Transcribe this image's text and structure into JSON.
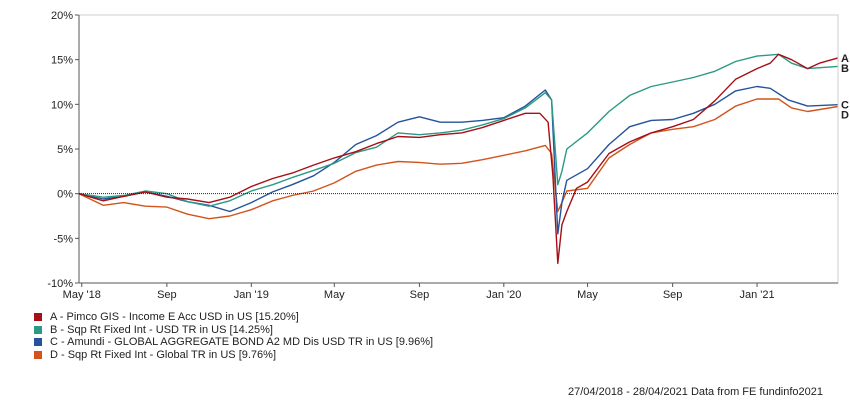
{
  "chart_data": {
    "type": "line",
    "y_tick_labels": [
      "20%",
      "15%",
      "10%",
      "5%",
      "0%",
      "-5%",
      "-10%"
    ],
    "y_ticks": [
      20,
      15,
      10,
      5,
      0,
      -5,
      -10
    ],
    "ylim": [
      -10,
      20
    ],
    "xlim": [
      "2018-04-27",
      "2021-04-28"
    ],
    "x_ticks": [
      {
        "label": "May '18",
        "date": "2018-05-01"
      },
      {
        "label": "Sep",
        "date": "2018-09-01"
      },
      {
        "label": "Jan '19",
        "date": "2019-01-01"
      },
      {
        "label": "May",
        "date": "2019-05-01"
      },
      {
        "label": "Sep",
        "date": "2019-09-01"
      },
      {
        "label": "Jan '20",
        "date": "2020-01-01"
      },
      {
        "label": "May",
        "date": "2020-05-01"
      },
      {
        "label": "Sep",
        "date": "2020-09-01"
      },
      {
        "label": "Jan '21",
        "date": "2021-01-01"
      }
    ],
    "grid": false,
    "zero_line": true,
    "legend_position": "bottom-left",
    "series": [
      {
        "name": "A - Pimco GIS - Income E Acc USD in US [15.20%]",
        "end_label": "A",
        "color": "#a50f15",
        "points": [
          [
            "2018-04-27",
            0
          ],
          [
            "2018-06-01",
            -0.8
          ],
          [
            "2018-07-01",
            -0.3
          ],
          [
            "2018-08-01",
            0.2
          ],
          [
            "2018-09-01",
            -0.4
          ],
          [
            "2018-10-01",
            -0.6
          ],
          [
            "2018-11-01",
            -1.0
          ],
          [
            "2018-12-01",
            -0.4
          ],
          [
            "2019-01-01",
            0.8
          ],
          [
            "2019-02-01",
            1.7
          ],
          [
            "2019-03-01",
            2.3
          ],
          [
            "2019-04-01",
            3.2
          ],
          [
            "2019-05-01",
            4.0
          ],
          [
            "2019-06-01",
            4.7
          ],
          [
            "2019-07-01",
            5.6
          ],
          [
            "2019-08-01",
            6.4
          ],
          [
            "2019-09-01",
            6.3
          ],
          [
            "2019-10-01",
            6.6
          ],
          [
            "2019-11-01",
            6.8
          ],
          [
            "2019-12-01",
            7.4
          ],
          [
            "2020-01-01",
            8.2
          ],
          [
            "2020-02-01",
            9.0
          ],
          [
            "2020-02-22",
            9.0
          ],
          [
            "2020-03-05",
            8.0
          ],
          [
            "2020-03-12",
            2.0
          ],
          [
            "2020-03-19",
            -7.8
          ],
          [
            "2020-03-25",
            -3.5
          ],
          [
            "2020-04-01",
            -2.0
          ],
          [
            "2020-04-15",
            0.6
          ],
          [
            "2020-05-01",
            1.3
          ],
          [
            "2020-06-01",
            4.5
          ],
          [
            "2020-07-01",
            5.8
          ],
          [
            "2020-08-01",
            6.8
          ],
          [
            "2020-09-01",
            7.5
          ],
          [
            "2020-10-01",
            8.3
          ],
          [
            "2020-11-01",
            10.4
          ],
          [
            "2020-12-01",
            12.8
          ],
          [
            "2021-01-01",
            14.0
          ],
          [
            "2021-01-20",
            14.6
          ],
          [
            "2021-02-01",
            15.6
          ],
          [
            "2021-02-20",
            15.0
          ],
          [
            "2021-03-15",
            14.0
          ],
          [
            "2021-04-01",
            14.6
          ],
          [
            "2021-04-28",
            15.2
          ]
        ]
      },
      {
        "name": "B - Sqp Rt Fixed Int - USD TR in US [14.25%]",
        "end_label": "B",
        "color": "#2b9984",
        "points": [
          [
            "2018-04-27",
            0
          ],
          [
            "2018-06-01",
            -0.4
          ],
          [
            "2018-07-01",
            -0.2
          ],
          [
            "2018-08-01",
            0.3
          ],
          [
            "2018-09-01",
            0.0
          ],
          [
            "2018-10-01",
            -0.9
          ],
          [
            "2018-11-01",
            -1.4
          ],
          [
            "2018-12-01",
            -0.8
          ],
          [
            "2019-01-01",
            0.3
          ],
          [
            "2019-02-01",
            1.0
          ],
          [
            "2019-03-01",
            1.8
          ],
          [
            "2019-04-01",
            2.6
          ],
          [
            "2019-05-01",
            3.4
          ],
          [
            "2019-06-01",
            4.6
          ],
          [
            "2019-07-01",
            5.2
          ],
          [
            "2019-08-01",
            6.8
          ],
          [
            "2019-09-01",
            6.6
          ],
          [
            "2019-10-01",
            6.8
          ],
          [
            "2019-11-01",
            7.1
          ],
          [
            "2019-12-01",
            7.7
          ],
          [
            "2020-01-01",
            8.4
          ],
          [
            "2020-02-01",
            9.6
          ],
          [
            "2020-03-01",
            11.3
          ],
          [
            "2020-03-10",
            10.5
          ],
          [
            "2020-03-19",
            1.0
          ],
          [
            "2020-03-25",
            2.5
          ],
          [
            "2020-04-01",
            5.0
          ],
          [
            "2020-05-01",
            6.8
          ],
          [
            "2020-06-01",
            9.2
          ],
          [
            "2020-07-01",
            11.0
          ],
          [
            "2020-08-01",
            12.0
          ],
          [
            "2020-09-01",
            12.5
          ],
          [
            "2020-10-01",
            13.0
          ],
          [
            "2020-11-01",
            13.7
          ],
          [
            "2020-12-01",
            14.8
          ],
          [
            "2021-01-01",
            15.4
          ],
          [
            "2021-02-01",
            15.6
          ],
          [
            "2021-02-20",
            14.6
          ],
          [
            "2021-03-15",
            14.0
          ],
          [
            "2021-04-28",
            14.25
          ]
        ]
      },
      {
        "name": "C - Amundi - GLOBAL AGGREGATE BOND A2 MD Dis USD TR in US [9.96%]",
        "end_label": "C",
        "color": "#24539c",
        "points": [
          [
            "2018-04-27",
            0
          ],
          [
            "2018-06-01",
            -0.6
          ],
          [
            "2018-07-01",
            -0.3
          ],
          [
            "2018-08-01",
            0.2
          ],
          [
            "2018-09-01",
            -0.3
          ],
          [
            "2018-10-01",
            -0.9
          ],
          [
            "2018-11-01",
            -1.3
          ],
          [
            "2018-12-01",
            -2.0
          ],
          [
            "2019-01-01",
            -1.0
          ],
          [
            "2019-02-01",
            0.2
          ],
          [
            "2019-03-01",
            1.0
          ],
          [
            "2019-04-01",
            2.0
          ],
          [
            "2019-05-01",
            3.5
          ],
          [
            "2019-06-01",
            5.5
          ],
          [
            "2019-07-01",
            6.5
          ],
          [
            "2019-08-01",
            8.0
          ],
          [
            "2019-09-01",
            8.6
          ],
          [
            "2019-10-01",
            8.0
          ],
          [
            "2019-11-01",
            8.0
          ],
          [
            "2019-12-01",
            8.2
          ],
          [
            "2020-01-01",
            8.5
          ],
          [
            "2020-02-01",
            9.8
          ],
          [
            "2020-03-01",
            11.6
          ],
          [
            "2020-03-10",
            10.5
          ],
          [
            "2020-03-19",
            -4.5
          ],
          [
            "2020-03-25",
            -1.0
          ],
          [
            "2020-04-01",
            1.5
          ],
          [
            "2020-05-01",
            2.8
          ],
          [
            "2020-06-01",
            5.5
          ],
          [
            "2020-07-01",
            7.5
          ],
          [
            "2020-08-01",
            8.2
          ],
          [
            "2020-09-01",
            8.3
          ],
          [
            "2020-10-01",
            9.0
          ],
          [
            "2020-11-01",
            10.0
          ],
          [
            "2020-12-01",
            11.5
          ],
          [
            "2021-01-01",
            12.0
          ],
          [
            "2021-01-20",
            11.8
          ],
          [
            "2021-02-15",
            10.5
          ],
          [
            "2021-03-15",
            9.8
          ],
          [
            "2021-04-28",
            9.96
          ]
        ]
      },
      {
        "name": "D - Sqp Rt Fixed Int - Global TR in US [9.76%]",
        "end_label": "D",
        "color": "#d2541c",
        "points": [
          [
            "2018-04-27",
            0
          ],
          [
            "2018-06-01",
            -1.3
          ],
          [
            "2018-07-01",
            -1.0
          ],
          [
            "2018-08-01",
            -1.4
          ],
          [
            "2018-09-01",
            -1.5
          ],
          [
            "2018-10-01",
            -2.3
          ],
          [
            "2018-11-01",
            -2.8
          ],
          [
            "2018-12-01",
            -2.5
          ],
          [
            "2019-01-01",
            -1.8
          ],
          [
            "2019-02-01",
            -0.8
          ],
          [
            "2019-03-01",
            -0.2
          ],
          [
            "2019-04-01",
            0.3
          ],
          [
            "2019-05-01",
            1.2
          ],
          [
            "2019-06-01",
            2.5
          ],
          [
            "2019-07-01",
            3.2
          ],
          [
            "2019-08-01",
            3.6
          ],
          [
            "2019-09-01",
            3.5
          ],
          [
            "2019-10-01",
            3.3
          ],
          [
            "2019-11-01",
            3.4
          ],
          [
            "2019-12-01",
            3.8
          ],
          [
            "2020-01-01",
            4.3
          ],
          [
            "2020-02-01",
            4.8
          ],
          [
            "2020-03-01",
            5.4
          ],
          [
            "2020-03-10",
            4.5
          ],
          [
            "2020-03-19",
            -2.0
          ],
          [
            "2020-03-25",
            -1.0
          ],
          [
            "2020-04-01",
            0.3
          ],
          [
            "2020-05-01",
            0.6
          ],
          [
            "2020-06-01",
            4.0
          ],
          [
            "2020-07-01",
            5.5
          ],
          [
            "2020-08-01",
            6.8
          ],
          [
            "2020-09-01",
            7.2
          ],
          [
            "2020-10-01",
            7.5
          ],
          [
            "2020-11-01",
            8.3
          ],
          [
            "2020-12-01",
            9.8
          ],
          [
            "2021-01-01",
            10.6
          ],
          [
            "2021-02-01",
            10.6
          ],
          [
            "2021-02-20",
            9.6
          ],
          [
            "2021-03-15",
            9.2
          ],
          [
            "2021-04-28",
            9.76
          ]
        ]
      }
    ]
  },
  "footer": "27/04/2018 - 28/04/2021 Data from FE fundinfo2021"
}
